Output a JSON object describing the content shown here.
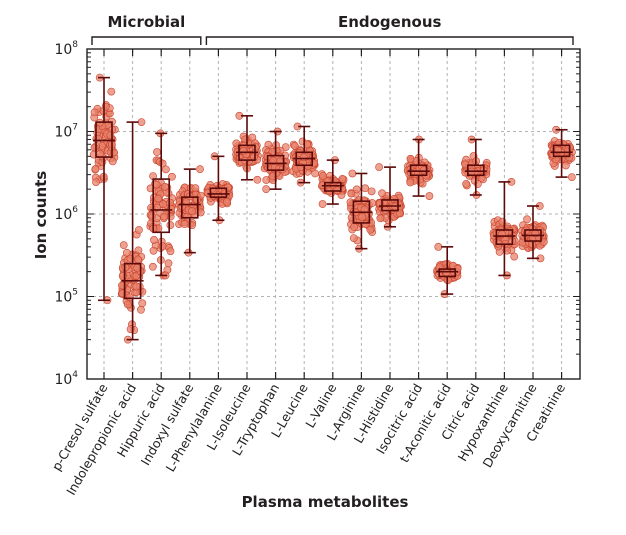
{
  "chart_data": {
    "type": "box",
    "title": "",
    "xlabel": "Plasma metabolites",
    "ylabel": "Ion counts",
    "yscale": "log",
    "ylim": [
      10000,
      100000000
    ],
    "yticks": [
      {
        "value": 10000,
        "base": "10",
        "exp": "4"
      },
      {
        "value": 100000,
        "base": "10",
        "exp": "5"
      },
      {
        "value": 1000000,
        "base": "10",
        "exp": "6"
      },
      {
        "value": 10000000,
        "base": "10",
        "exp": "7"
      },
      {
        "value": 100000000,
        "base": "10",
        "exp": "8"
      }
    ],
    "grid": true,
    "groups": [
      {
        "label": "Microbial",
        "from": 0,
        "to": 3
      },
      {
        "label": "Endogenous",
        "from": 4,
        "to": 16
      }
    ],
    "colors": {
      "dots": "#e8826b",
      "box": "#5c0a0a",
      "text": "#231f20",
      "grid": "#b3b3b3"
    },
    "categories": [
      "p-Cresol sulfate",
      "Indolepropionic acid",
      "Hippuric acid",
      "Indoxyl sulfate",
      "L-Phenylalanine",
      "L-Isoleucine",
      "L-Tryptophan",
      "L-Leucine",
      "L-Valine",
      "L-Arginine",
      "L-Histidine",
      "Isocitric acid",
      "t-Aconitic acid",
      "Citric acid",
      "Hypoxanthine",
      "Deoxycarnitine",
      "Creatinine"
    ],
    "boxes": [
      {
        "whisker_low": 90000,
        "q1": 4900000,
        "median": 7800000,
        "q3": 13000000,
        "whisker_high": 45000000
      },
      {
        "whisker_low": 30000,
        "q1": 95000,
        "median": 155000,
        "q3": 250000,
        "whisker_high": 13000000
      },
      {
        "whisker_low": 180000,
        "q1": 600000,
        "median": 1120000,
        "q3": 2650000,
        "whisker_high": 9500000
      },
      {
        "whisker_low": 340000,
        "q1": 900000,
        "median": 1300000,
        "q3": 1600000,
        "whisker_high": 3500000
      },
      {
        "whisker_low": 840000,
        "q1": 1600000,
        "median": 1750000,
        "q3": 2050000,
        "whisker_high": 5000000
      },
      {
        "whisker_low": 2600000,
        "q1": 4500000,
        "median": 5600000,
        "q3": 6800000,
        "whisker_high": 15500000
      },
      {
        "whisker_low": 2000000,
        "q1": 3400000,
        "median": 4100000,
        "q3": 5100000,
        "whisker_high": 10000000
      },
      {
        "whisker_low": 2400000,
        "q1": 3900000,
        "median": 4700000,
        "q3": 5600000,
        "whisker_high": 11500000
      },
      {
        "whisker_low": 1320000,
        "q1": 1900000,
        "median": 2200000,
        "q3": 2400000,
        "whisker_high": 4500000
      },
      {
        "whisker_low": 380000,
        "q1": 780000,
        "median": 1050000,
        "q3": 1430000,
        "whisker_high": 3100000
      },
      {
        "whisker_low": 700000,
        "q1": 1100000,
        "median": 1250000,
        "q3": 1480000,
        "whisker_high": 3700000
      },
      {
        "whisker_low": 1650000,
        "q1": 2950000,
        "median": 3300000,
        "q3": 3900000,
        "whisker_high": 8000000
      },
      {
        "whisker_low": 107000,
        "q1": 175000,
        "median": 200000,
        "q3": 215000,
        "whisker_high": 400000
      },
      {
        "whisker_low": 1700000,
        "q1": 2950000,
        "median": 3300000,
        "q3": 3900000,
        "whisker_high": 8000000
      },
      {
        "whisker_low": 180000,
        "q1": 430000,
        "median": 540000,
        "q3": 640000,
        "whisker_high": 2450000
      },
      {
        "whisker_low": 290000,
        "q1": 470000,
        "median": 550000,
        "q3": 640000,
        "whisker_high": 1250000
      },
      {
        "whisker_low": 2800000,
        "q1": 5000000,
        "median": 5600000,
        "q3": 6800000,
        "whisker_high": 10500000
      }
    ],
    "points_per_category": 80
  }
}
